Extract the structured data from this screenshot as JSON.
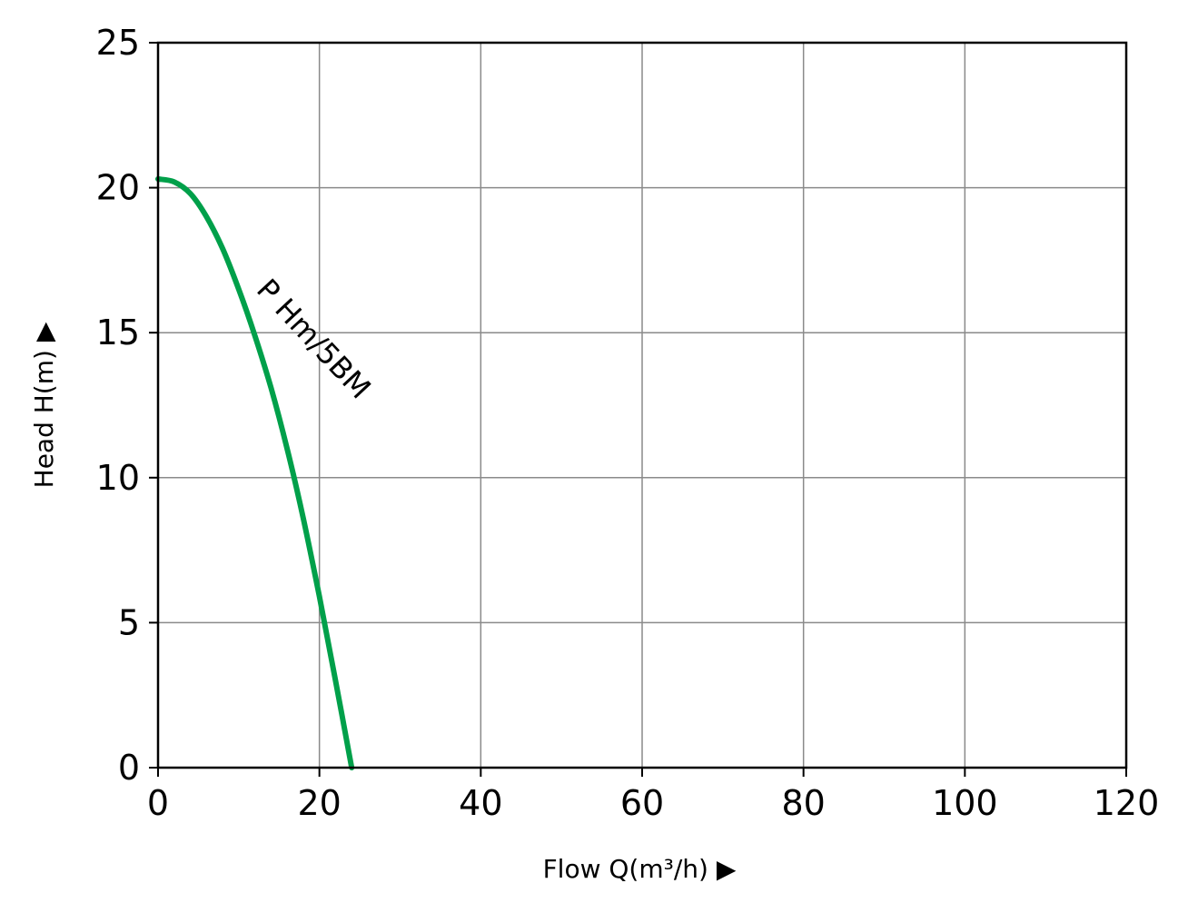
{
  "chart_data": {
    "type": "line",
    "title": "",
    "xlabel": "Flow Q(m³/h) ▶",
    "ylabel": "Head H(m) ▶",
    "xlim": [
      0,
      120
    ],
    "ylim": [
      0,
      25
    ],
    "xticks": [
      0,
      20,
      40,
      60,
      80,
      100,
      120
    ],
    "yticks": [
      0,
      5,
      10,
      15,
      20,
      25
    ],
    "grid": true,
    "series": [
      {
        "name": "P Hm/5BM",
        "color": "#00a04a",
        "x": [
          0,
          2,
          4,
          6,
          8,
          10,
          12,
          14,
          16,
          18,
          20,
          22,
          24
        ],
        "y": [
          20.3,
          20.2,
          19.8,
          19.0,
          17.9,
          16.5,
          14.9,
          13.1,
          11.0,
          8.6,
          5.9,
          3.0,
          0
        ]
      }
    ]
  }
}
